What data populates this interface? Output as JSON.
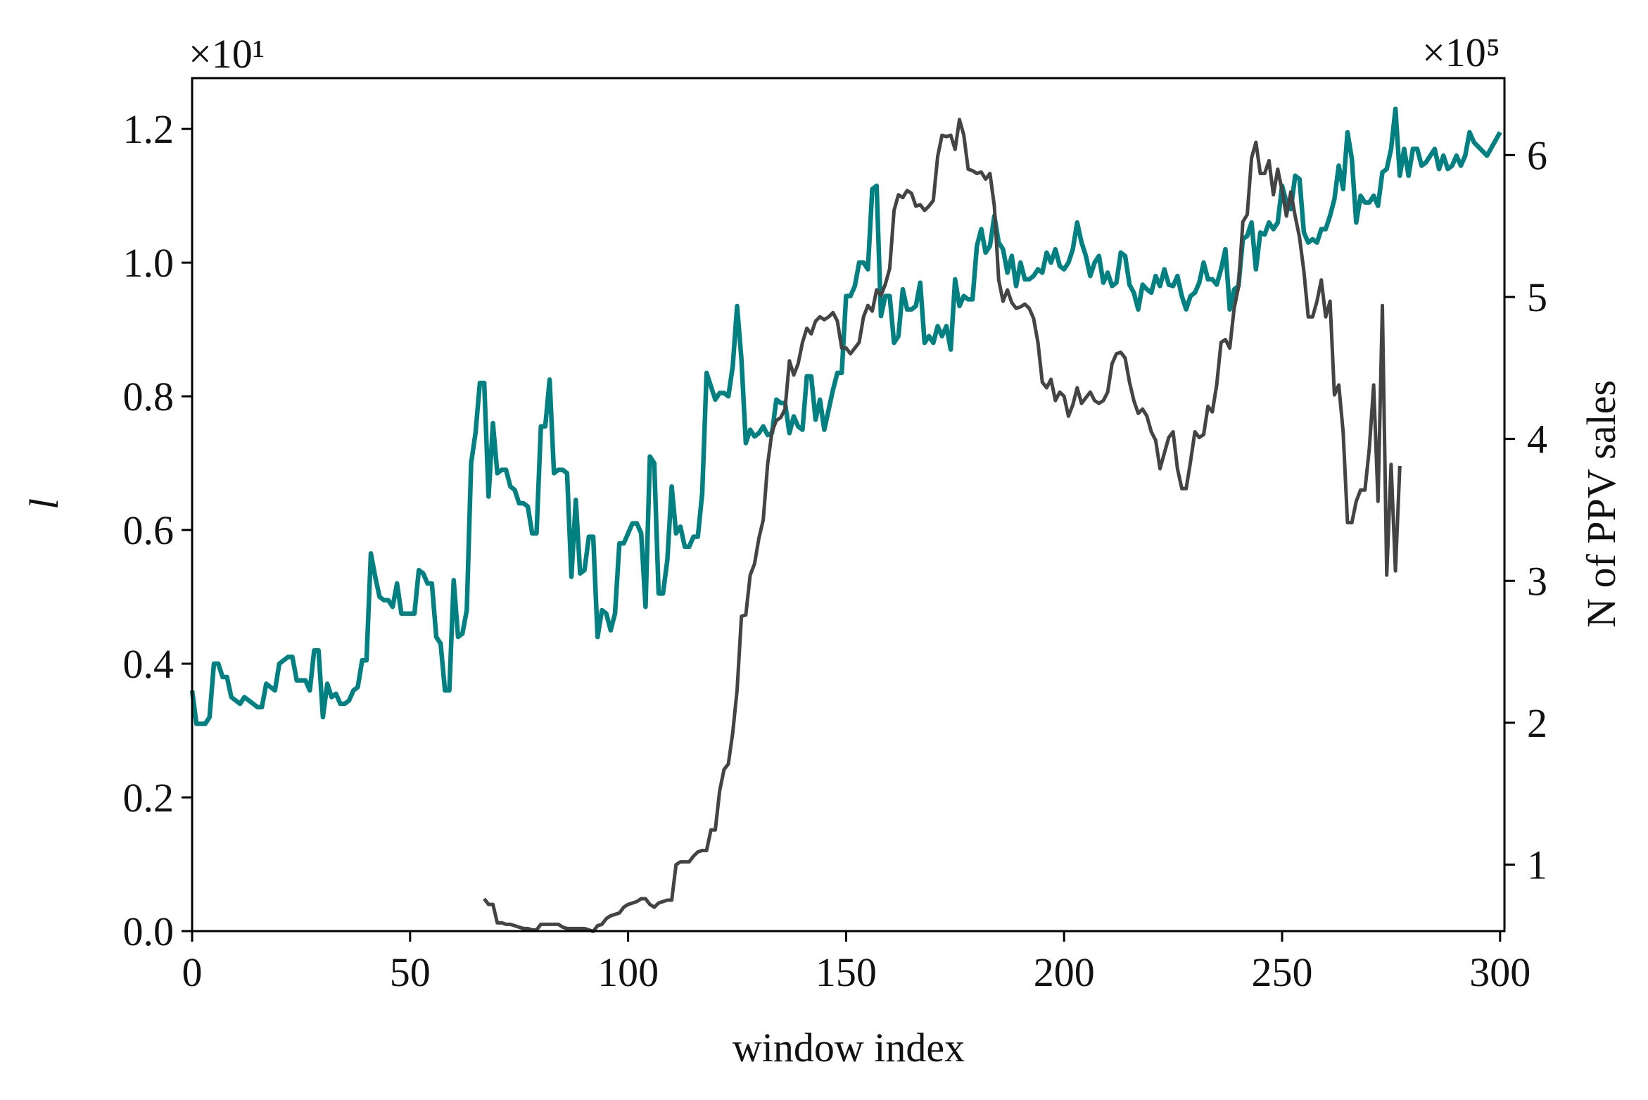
{
  "chart_data": {
    "type": "line",
    "x_label": "window index",
    "y_label": "l",
    "y2_label": "N of PPV sales",
    "y_offset": "×10¹",
    "y2_offset": "×10⁵",
    "xlim": [
      0,
      301
    ],
    "xticks": [
      0,
      50,
      100,
      150,
      200,
      250,
      300
    ],
    "ylim": [
      0,
      1.276
    ],
    "yticks": [
      {
        "value": 0,
        "label": "0.0"
      },
      0.2,
      0.4,
      0.6,
      0.8,
      {
        "value": 1,
        "label": "1.0"
      },
      1.2
    ],
    "y2lim": [
      0.532,
      6.542
    ],
    "y2ticks": [
      1,
      2,
      3,
      4,
      5,
      6
    ],
    "y_color": "#008080",
    "series": [
      {
        "color": "#008080",
        "axis": "y",
        "x": [
          0,
          1,
          2,
          3,
          4,
          5,
          6,
          7,
          8,
          9,
          10,
          11,
          12,
          13,
          14,
          15,
          16,
          17,
          18,
          19,
          20,
          21,
          22,
          23,
          24,
          25,
          26,
          27,
          28,
          29,
          30,
          31,
          32,
          33,
          34,
          35,
          36,
          37,
          38,
          39,
          40,
          41,
          42,
          43,
          44,
          45,
          46,
          47,
          48,
          49,
          50,
          51,
          52,
          53,
          54,
          55,
          56,
          57,
          58,
          59,
          60,
          61,
          62,
          63,
          64,
          65,
          66,
          67,
          68,
          69,
          70,
          71,
          72,
          73,
          74,
          75,
          76,
          77,
          78,
          79,
          80,
          81,
          82,
          83,
          84,
          85,
          86,
          87,
          88,
          89,
          90,
          91,
          92,
          93,
          94,
          95,
          96,
          97,
          98,
          99,
          100,
          101,
          102,
          103,
          104,
          105,
          106,
          107,
          108,
          109,
          110,
          111,
          112,
          113,
          114,
          115,
          116,
          117,
          118,
          119,
          120,
          121,
          122,
          123,
          124,
          125,
          126,
          127,
          128,
          129,
          130,
          131,
          132,
          133,
          134,
          135,
          136,
          137,
          138,
          139,
          140,
          141,
          142,
          143,
          144,
          145,
          146,
          147,
          148,
          149,
          150,
          151,
          152,
          153,
          154,
          155,
          156,
          157,
          158,
          159,
          160,
          161,
          162,
          163,
          164,
          165,
          166,
          167,
          168,
          169,
          170,
          171,
          172,
          173,
          174,
          175,
          176,
          177,
          178,
          179,
          180,
          181,
          182,
          183,
          184,
          185,
          186,
          187,
          188,
          189,
          190,
          191,
          192,
          193,
          194,
          195,
          196,
          197,
          198,
          199,
          200,
          201,
          202,
          203,
          204,
          205,
          206,
          207,
          208,
          209,
          210,
          211,
          212,
          213,
          214,
          215,
          216,
          217,
          218,
          219,
          220,
          221,
          222,
          223,
          224,
          225,
          226,
          227,
          228,
          229,
          230,
          231,
          232,
          233,
          234,
          235,
          236,
          237,
          238,
          239,
          240,
          241,
          242,
          243,
          244,
          245,
          246,
          247,
          248,
          249,
          250,
          251,
          252,
          253,
          254,
          255,
          256,
          257,
          258,
          259,
          260,
          261,
          262,
          263,
          264,
          265,
          266,
          267,
          268,
          269,
          270,
          271,
          272,
          273,
          274,
          275,
          276,
          277,
          278,
          279,
          280,
          281,
          282,
          283,
          284,
          285,
          286,
          287,
          288,
          289,
          290,
          291,
          292,
          293,
          294,
          297,
          300
        ],
        "values": [
          0.36,
          0.31,
          0.31,
          0.31,
          0.32,
          0.4,
          0.4,
          0.38,
          0.38,
          0.35,
          0.345,
          0.34,
          0.35,
          0.345,
          0.34,
          0.335,
          0.335,
          0.37,
          0.365,
          0.36,
          0.4,
          0.405,
          0.41,
          0.41,
          0.375,
          0.375,
          0.375,
          0.36,
          0.42,
          0.42,
          0.32,
          0.37,
          0.35,
          0.355,
          0.34,
          0.34,
          0.345,
          0.36,
          0.365,
          0.405,
          0.405,
          0.565,
          0.53,
          0.5,
          0.495,
          0.495,
          0.485,
          0.52,
          0.475,
          0.475,
          0.475,
          0.475,
          0.54,
          0.535,
          0.52,
          0.52,
          0.44,
          0.43,
          0.36,
          0.36,
          0.525,
          0.44,
          0.445,
          0.48,
          0.7,
          0.745,
          0.82,
          0.82,
          0.65,
          0.76,
          0.685,
          0.69,
          0.69,
          0.665,
          0.66,
          0.64,
          0.64,
          0.635,
          0.595,
          0.595,
          0.755,
          0.755,
          0.825,
          0.685,
          0.69,
          0.69,
          0.685,
          0.53,
          0.645,
          0.535,
          0.54,
          0.59,
          0.59,
          0.44,
          0.48,
          0.475,
          0.45,
          0.475,
          0.58,
          0.58,
          0.595,
          0.61,
          0.61,
          0.595,
          0.485,
          0.71,
          0.7,
          0.505,
          0.505,
          0.555,
          0.665,
          0.595,
          0.605,
          0.575,
          0.575,
          0.59,
          0.59,
          0.655,
          0.835,
          0.815,
          0.795,
          0.805,
          0.805,
          0.8,
          0.845,
          0.935,
          0.855,
          0.73,
          0.75,
          0.74,
          0.745,
          0.755,
          0.742,
          0.745,
          0.795,
          0.79,
          0.79,
          0.745,
          0.77,
          0.755,
          0.75,
          0.83,
          0.83,
          0.765,
          0.795,
          0.75,
          0.78,
          0.81,
          0.835,
          0.835,
          0.95,
          0.95,
          0.965,
          1.0,
          1.0,
          0.99,
          1.11,
          1.115,
          0.92,
          0.95,
          0.95,
          0.88,
          0.89,
          0.96,
          0.93,
          0.93,
          0.935,
          0.97,
          0.88,
          0.89,
          0.88,
          0.905,
          0.89,
          0.905,
          0.87,
          0.975,
          0.935,
          0.95,
          0.945,
          0.945,
          1.025,
          1.05,
          1.015,
          1.025,
          1.07,
          1.03,
          1.02,
          0.985,
          1.01,
          0.965,
          1.0,
          0.975,
          0.975,
          0.98,
          0.99,
          0.985,
          1.015,
          1.0,
          1.02,
          0.995,
          0.99,
          1.0,
          1.02,
          1.06,
          1.03,
          1.01,
          0.98,
          1.0,
          1.01,
          0.97,
          0.985,
          0.965,
          0.97,
          1.015,
          1.01,
          0.967,
          0.955,
          0.93,
          0.967,
          0.96,
          0.955,
          0.98,
          0.965,
          0.99,
          0.967,
          0.965,
          0.98,
          0.95,
          0.93,
          0.95,
          0.955,
          0.97,
          1.0,
          0.975,
          0.975,
          0.967,
          0.99,
          1.02,
          0.93,
          0.96,
          0.965,
          1.035,
          1.04,
          1.06,
          0.99,
          1.045,
          1.042,
          1.06,
          1.05,
          1.06,
          1.115,
          1.09,
          1.08,
          1.13,
          1.125,
          1.045,
          1.03,
          1.035,
          1.03,
          1.05,
          1.05,
          1.07,
          1.095,
          1.145,
          1.11,
          1.195,
          1.155,
          1.06,
          1.1,
          1.09,
          1.09,
          1.1,
          1.085,
          1.135,
          1.14,
          1.17,
          1.23,
          1.13,
          1.17,
          1.13,
          1.17,
          1.17,
          1.145,
          1.15,
          1.16,
          1.17,
          1.14,
          1.16,
          1.14,
          1.145,
          1.16,
          1.145,
          1.16,
          1.195,
          1.18,
          1.16,
          1.195
        ]
      },
      {
        "color": "#444444",
        "axis": "y2",
        "x": [
          67,
          68,
          69,
          70,
          71,
          72,
          73,
          74,
          75,
          76,
          77,
          78,
          79,
          80,
          81,
          82,
          83,
          84,
          85,
          86,
          87,
          88,
          89,
          90,
          91,
          92,
          93,
          94,
          95,
          96,
          97,
          98,
          99,
          100,
          101,
          102,
          103,
          104,
          105,
          106,
          107,
          108,
          109,
          110,
          111,
          112,
          113,
          114,
          115,
          116,
          117,
          118,
          119,
          120,
          121,
          122,
          123,
          124,
          125,
          126,
          127,
          128,
          129,
          130,
          131,
          132,
          133,
          134,
          135,
          136,
          137,
          138,
          139,
          140,
          141,
          142,
          143,
          144,
          145,
          146,
          147,
          148,
          149,
          150,
          151,
          152,
          153,
          154,
          155,
          156,
          157,
          158,
          159,
          160,
          161,
          162,
          163,
          164,
          165,
          166,
          167,
          168,
          169,
          170,
          171,
          172,
          173,
          174,
          175,
          176,
          177,
          178,
          179,
          180,
          181,
          182,
          183,
          184,
          185,
          186,
          187,
          188,
          189,
          190,
          191,
          192,
          193,
          194,
          195,
          196,
          197,
          198,
          199,
          200,
          201,
          202,
          203,
          204,
          205,
          206,
          207,
          208,
          209,
          210,
          211,
          212,
          213,
          214,
          215,
          216,
          217,
          218,
          219,
          220,
          221,
          222,
          223,
          224,
          225,
          226,
          227,
          228,
          229,
          230,
          231,
          232,
          233,
          234,
          235,
          236,
          237,
          238,
          239,
          240,
          241,
          242,
          243,
          244,
          245,
          246,
          247,
          248,
          249,
          250,
          251,
          252,
          253,
          254,
          255,
          256,
          257,
          258,
          259,
          260,
          261,
          262,
          263,
          264,
          265,
          266,
          267,
          268,
          269,
          270,
          271,
          272,
          273,
          274,
          275,
          276,
          277
        ],
        "values": [
          0.76,
          0.72,
          0.72,
          0.59,
          0.59,
          0.58,
          0.58,
          0.57,
          0.56,
          0.55,
          0.55,
          0.54,
          0.54,
          0.58,
          0.58,
          0.58,
          0.58,
          0.58,
          0.56,
          0.55,
          0.55,
          0.55,
          0.55,
          0.55,
          0.54,
          0.53,
          0.57,
          0.58,
          0.62,
          0.64,
          0.65,
          0.66,
          0.7,
          0.72,
          0.73,
          0.74,
          0.76,
          0.76,
          0.72,
          0.7,
          0.73,
          0.74,
          0.75,
          0.75,
          1.0,
          1.02,
          1.02,
          1.02,
          1.06,
          1.09,
          1.1,
          1.1,
          1.245,
          1.245,
          1.52,
          1.67,
          1.71,
          1.93,
          2.23,
          2.75,
          2.76,
          3.04,
          3.12,
          3.3,
          3.43,
          3.82,
          4.05,
          4.13,
          4.15,
          4.21,
          4.55,
          4.45,
          4.53,
          4.68,
          4.78,
          4.74,
          4.83,
          4.86,
          4.84,
          4.86,
          4.89,
          4.83,
          4.64,
          4.64,
          4.6,
          4.64,
          4.68,
          4.86,
          4.94,
          4.9,
          5.05,
          5.01,
          5.09,
          5.2,
          5.61,
          5.72,
          5.7,
          5.75,
          5.73,
          5.64,
          5.65,
          5.61,
          5.64,
          5.68,
          5.99,
          6.14,
          6.13,
          6.14,
          6.04,
          6.25,
          6.14,
          5.9,
          5.89,
          5.87,
          5.88,
          5.83,
          5.87,
          5.64,
          5.12,
          4.97,
          5.05,
          4.96,
          4.92,
          4.93,
          4.95,
          4.92,
          4.85,
          4.68,
          4.4,
          4.36,
          4.42,
          4.27,
          4.33,
          4.3,
          4.16,
          4.24,
          4.36,
          4.25,
          4.29,
          4.33,
          4.27,
          4.25,
          4.27,
          4.33,
          4.53,
          4.6,
          4.61,
          4.57,
          4.4,
          4.27,
          4.18,
          4.21,
          4.16,
          4.05,
          3.99,
          3.79,
          3.9,
          4.01,
          4.05,
          3.79,
          3.65,
          3.65,
          3.84,
          4.05,
          4.01,
          4.03,
          4.23,
          4.19,
          4.38,
          4.68,
          4.7,
          4.64,
          4.92,
          5.07,
          5.53,
          5.58,
          5.98,
          6.09,
          5.87,
          5.87,
          5.96,
          5.72,
          5.9,
          5.75,
          5.57,
          5.74,
          5.57,
          5.42,
          5.18,
          4.86,
          4.86,
          4.97,
          5.12,
          4.86,
          4.97,
          4.31,
          4.38,
          4.05,
          3.41,
          3.41,
          3.56,
          3.64,
          3.64,
          3.93,
          4.38,
          3.56,
          4.94,
          3.04,
          3.82,
          3.07,
          3.81
        ]
      }
    ]
  }
}
